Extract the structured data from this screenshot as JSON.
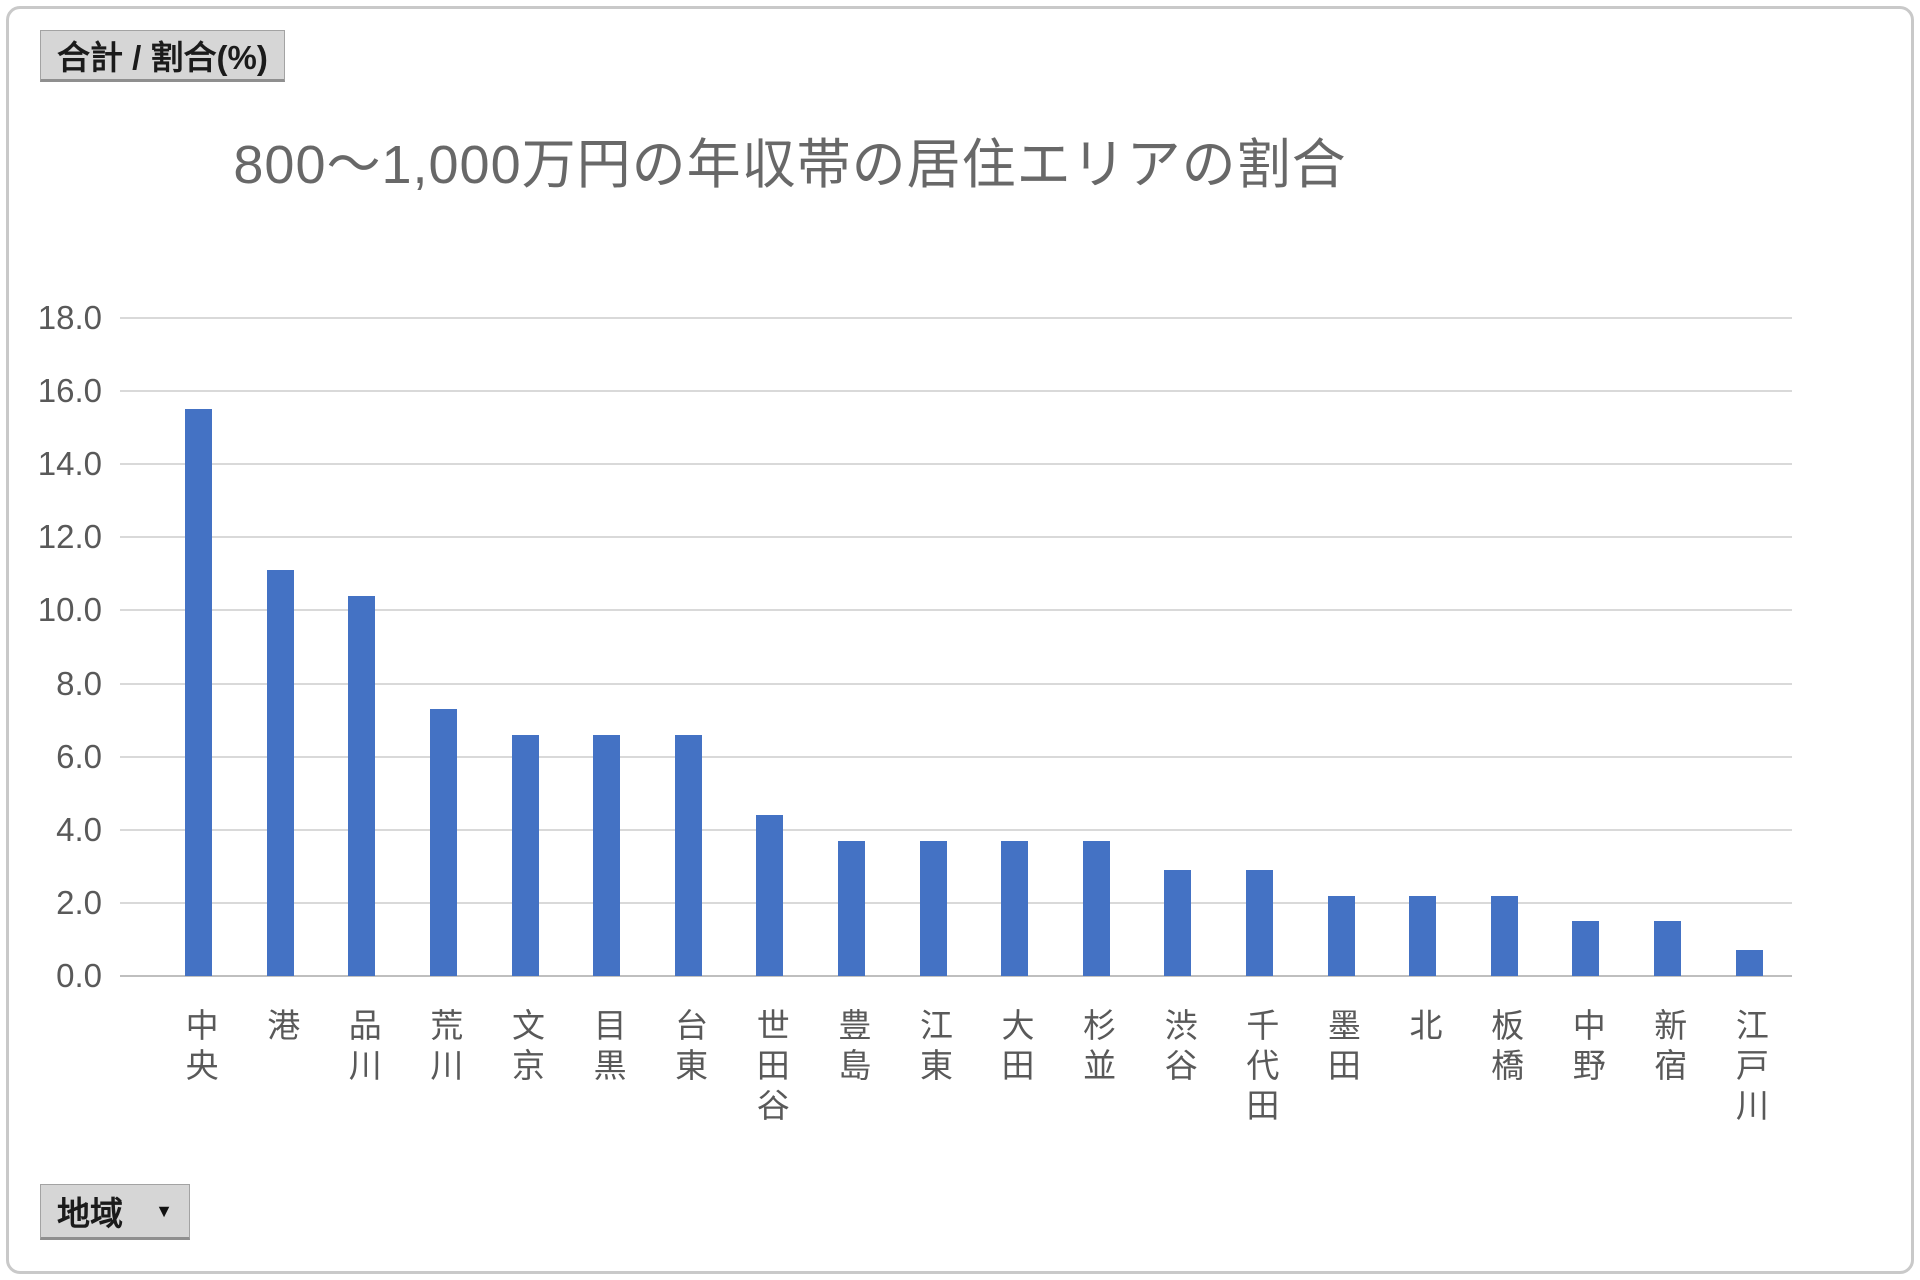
{
  "pivot_buttons": {
    "value_field": "合計 / 割合(%)",
    "axis_field": "地域"
  },
  "chart_data": {
    "type": "bar",
    "title": "800〜1,000万円の年収帯の居住エリアの割合",
    "categories": [
      "中央",
      "港",
      "品川",
      "荒川",
      "文京",
      "目黒",
      "台東",
      "世田谷",
      "豊島",
      "江東",
      "大田",
      "杉並",
      "渋谷",
      "千代田",
      "墨田",
      "北",
      "板橋",
      "中野",
      "新宿",
      "江戸川"
    ],
    "values": [
      15.5,
      11.1,
      10.4,
      7.3,
      6.6,
      6.6,
      6.6,
      4.4,
      3.7,
      3.7,
      3.7,
      3.7,
      2.9,
      2.9,
      2.2,
      2.2,
      2.2,
      1.5,
      1.5,
      0.7
    ],
    "xlabel": "",
    "ylabel": "",
    "ylim": [
      0,
      18
    ],
    "yticks": [
      "18.0",
      "16.0",
      "14.0",
      "12.0",
      "10.0",
      "8.0",
      "6.0",
      "4.0",
      "2.0",
      "0.0"
    ],
    "grid": true,
    "legend_position": "none",
    "bar_color": "#4472C4"
  },
  "colors": {
    "bar": "#4472C4",
    "gridline": "#D9D9D9",
    "axis_line": "#BFBFBF",
    "axis_text": "#595959",
    "title_text": "#686868",
    "button_bg": "#D6D6D6",
    "button_border": "#A3A3A3"
  }
}
